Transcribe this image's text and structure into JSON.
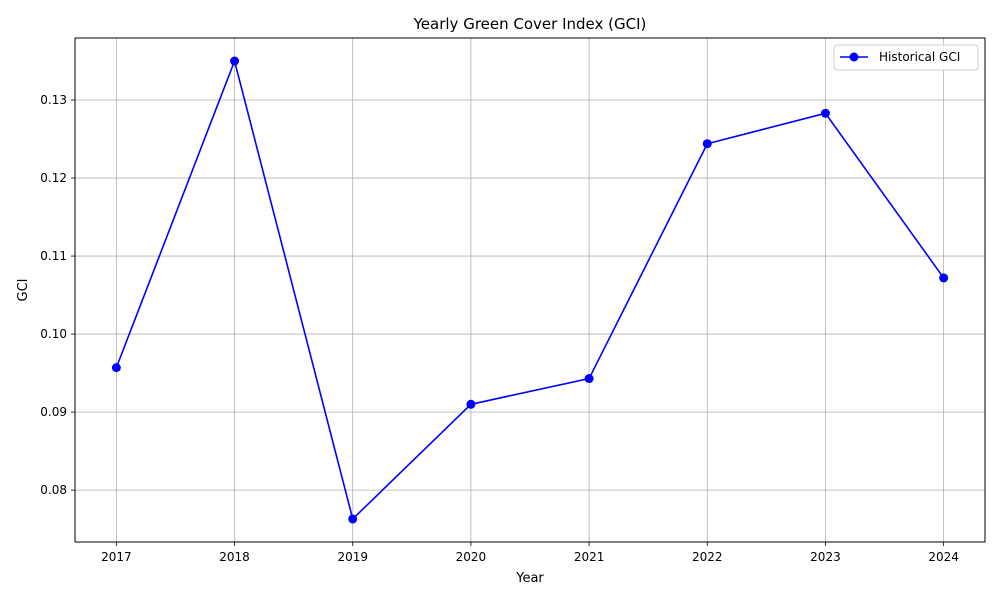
{
  "chart_data": {
    "type": "line",
    "title": "Yearly Green Cover Index (GCI)",
    "xlabel": "Year",
    "ylabel": "GCI",
    "x": [
      2017,
      2018,
      2019,
      2020,
      2021,
      2022,
      2023,
      2024
    ],
    "series": [
      {
        "name": "Historical GCI",
        "color": "#0000ff",
        "marker": "circle",
        "values": [
          0.0957,
          0.135,
          0.0763,
          0.091,
          0.0943,
          0.1244,
          0.1283,
          0.1072
        ]
      }
    ],
    "xlim": [
      2016.65,
      2024.35
    ],
    "ylim": [
      0.07335,
      0.13795
    ],
    "xticks": [
      "2017",
      "2018",
      "2019",
      "2020",
      "2021",
      "2022",
      "2023",
      "2024"
    ],
    "yticks": [
      "0.08",
      "0.09",
      "0.10",
      "0.11",
      "0.12",
      "0.13"
    ],
    "ytick_values": [
      0.08,
      0.09,
      0.1,
      0.11,
      0.12,
      0.13
    ],
    "grid": true,
    "legend_position": "top-right"
  }
}
